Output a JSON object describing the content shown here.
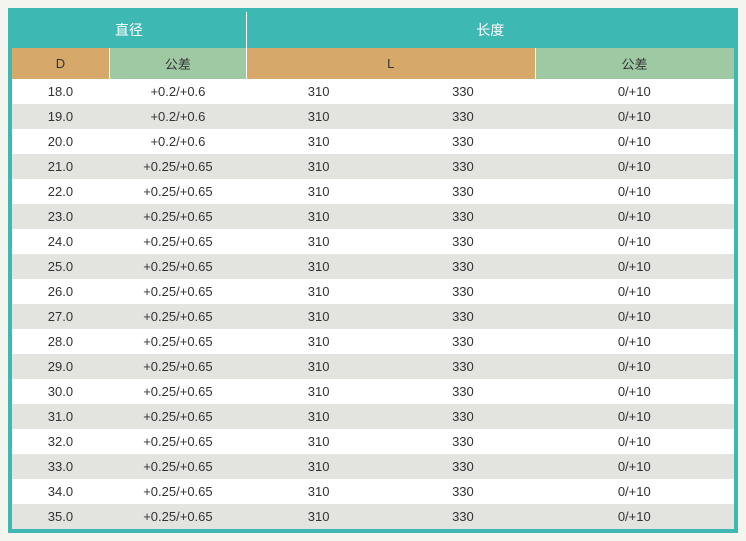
{
  "table": {
    "top_headers": {
      "diameter": "直径",
      "length": "长度"
    },
    "sub_headers": {
      "d": "D",
      "tol1": "公差",
      "l": "L",
      "tol2": "公差"
    },
    "colors": {
      "border": "#3eb8b3",
      "top_header_bg": "#3eb8b3",
      "top_header_fg": "#ffffff",
      "sub_tan": "#d6a96a",
      "sub_green": "#9fc9a3",
      "row_odd": "#ffffff",
      "row_even": "#e3e3e0"
    },
    "column_widths_pct": [
      13.5,
      19,
      20,
      20,
      27.5
    ],
    "rows": [
      {
        "d": "18.0",
        "tol1": "+0.2/+0.6",
        "l1": "310",
        "l2": "330",
        "tol2": "0/+10"
      },
      {
        "d": "19.0",
        "tol1": "+0.2/+0.6",
        "l1": "310",
        "l2": "330",
        "tol2": "0/+10"
      },
      {
        "d": "20.0",
        "tol1": "+0.2/+0.6",
        "l1": "310",
        "l2": "330",
        "tol2": "0/+10"
      },
      {
        "d": "21.0",
        "tol1": "+0.25/+0.65",
        "l1": "310",
        "l2": "330",
        "tol2": "0/+10"
      },
      {
        "d": "22.0",
        "tol1": "+0.25/+0.65",
        "l1": "310",
        "l2": "330",
        "tol2": "0/+10"
      },
      {
        "d": "23.0",
        "tol1": "+0.25/+0.65",
        "l1": "310",
        "l2": "330",
        "tol2": "0/+10"
      },
      {
        "d": "24.0",
        "tol1": "+0.25/+0.65",
        "l1": "310",
        "l2": "330",
        "tol2": "0/+10"
      },
      {
        "d": "25.0",
        "tol1": "+0.25/+0.65",
        "l1": "310",
        "l2": "330",
        "tol2": "0/+10"
      },
      {
        "d": "26.0",
        "tol1": "+0.25/+0.65",
        "l1": "310",
        "l2": "330",
        "tol2": "0/+10"
      },
      {
        "d": "27.0",
        "tol1": "+0.25/+0.65",
        "l1": "310",
        "l2": "330",
        "tol2": "0/+10"
      },
      {
        "d": "28.0",
        "tol1": "+0.25/+0.65",
        "l1": "310",
        "l2": "330",
        "tol2": "0/+10"
      },
      {
        "d": "29.0",
        "tol1": "+0.25/+0.65",
        "l1": "310",
        "l2": "330",
        "tol2": "0/+10"
      },
      {
        "d": "30.0",
        "tol1": "+0.25/+0.65",
        "l1": "310",
        "l2": "330",
        "tol2": "0/+10"
      },
      {
        "d": "31.0",
        "tol1": "+0.25/+0.65",
        "l1": "310",
        "l2": "330",
        "tol2": "0/+10"
      },
      {
        "d": "32.0",
        "tol1": "+0.25/+0.65",
        "l1": "310",
        "l2": "330",
        "tol2": "0/+10"
      },
      {
        "d": "33.0",
        "tol1": "+0.25/+0.65",
        "l1": "310",
        "l2": "330",
        "tol2": "0/+10"
      },
      {
        "d": "34.0",
        "tol1": "+0.25/+0.65",
        "l1": "310",
        "l2": "330",
        "tol2": "0/+10"
      },
      {
        "d": "35.0",
        "tol1": "+0.25/+0.65",
        "l1": "310",
        "l2": "330",
        "tol2": "0/+10"
      }
    ]
  }
}
